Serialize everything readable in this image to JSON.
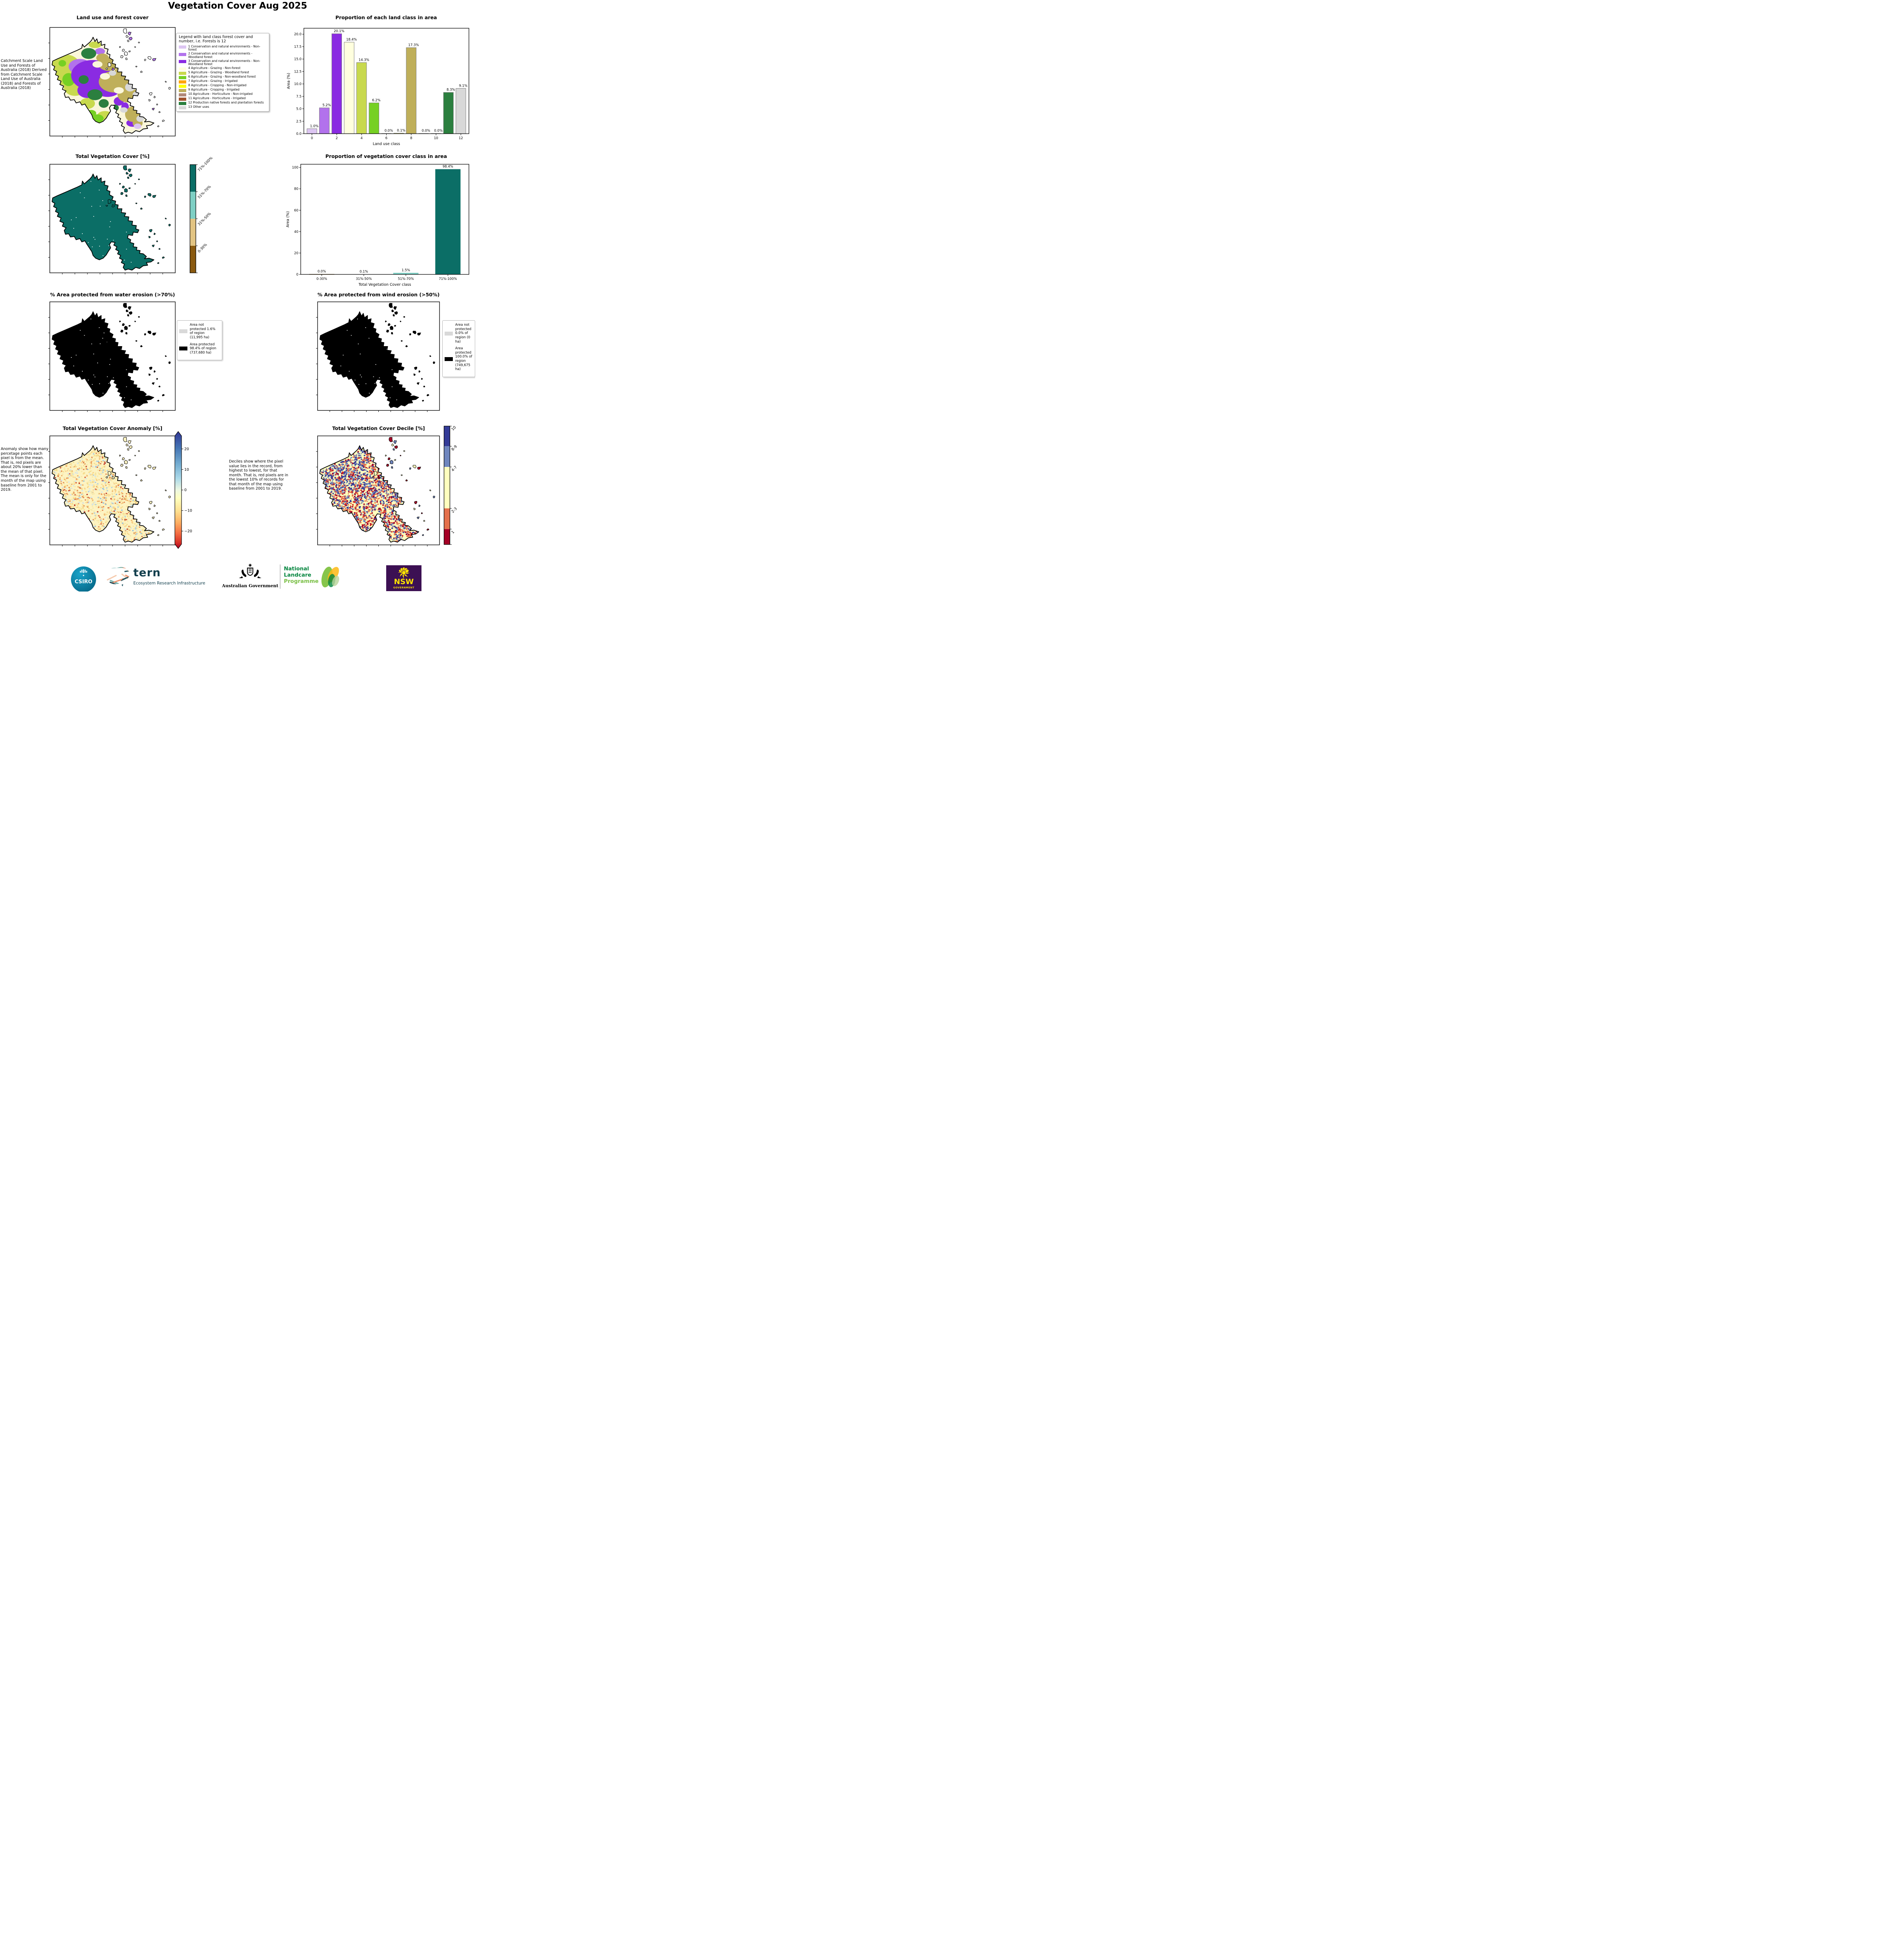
{
  "title": "Vegetation Cover Aug 2025",
  "land_use": {
    "title": "Land use and forest cover",
    "side_note": " Catchment Scale Land Use and Forests of Australia (2018) Derived from Catchment Scale Land Use of Australia (2018) and Forests of Australia (2018)",
    "legend_title": "Legend with land class forest cover and number, i.e. Forests is 12",
    "legend_items": [
      {
        "label": "1 Conservation and natural environments - Non-forest",
        "color": "#dcc5f2"
      },
      {
        "label": "2 Conservation and natural environments - Woodland forest",
        "color": "#b272ec"
      },
      {
        "label": "3 Conservation and natural environments - Non-Woodland forest",
        "color": "#8a2be2"
      },
      {
        "label": "4 Agriculture - Grazing - Non-forest",
        "color": "#ffffde"
      },
      {
        "label": "5 Agriculture - Grazing - Woodland forest",
        "color": "#c8d94e"
      },
      {
        "label": "6 Agriculture - Grazing - Non-woodland forest",
        "color": "#76d023"
      },
      {
        "label": "7 Agriculture - Grazing - Irrigated",
        "color": "#ffa500"
      },
      {
        "label": "8 Agriculture - Cropping - Non-irrigated",
        "color": "#ffff00"
      },
      {
        "label": "9 Agriculture - Cropping - Irrigated",
        "color": "#bfaf5a"
      },
      {
        "label": "10 Agriculture - Horticulture - Non-irrigated",
        "color": "#b08878"
      },
      {
        "label": "11 Agriculture - Horticulture - Irrigated",
        "color": "#a0522d"
      },
      {
        "label": "12 Production native forests and plantation forests",
        "color": "#2b7f3f"
      },
      {
        "label": "13 Other uses",
        "color": "#d8d8d8"
      }
    ]
  },
  "veg_cover": {
    "title": "Total Vegetation Cover [%]",
    "colorbar": [
      {
        "label": "71%-100%",
        "color": "#0b6e66"
      },
      {
        "label": "51%-70%",
        "color": "#7ecfc4"
      },
      {
        "label": "31%-50%",
        "color": "#e2c483"
      },
      {
        "label": "0-30%",
        "color": "#8a5a10"
      }
    ]
  },
  "water_erosion": {
    "title": "% Area protected from water erosion (>70%)",
    "legend": [
      {
        "color": "#d9d9d9",
        "label": "Area not protected 1.6% of region (11,995 ha)"
      },
      {
        "color": "#000000",
        "label": "Area protected 98.4% of region (737,680 ha)"
      }
    ]
  },
  "wind_erosion": {
    "title": "% Area protected from wind erosion (>50%)",
    "legend": [
      {
        "color": "#d9d9d9",
        "label": "Area not protected 0.0% of region (0 ha)"
      },
      {
        "color": "#000000",
        "label": "Area protected 100.0% of region (749,675 ha)"
      }
    ]
  },
  "anomaly": {
    "title": "Total Vegetation Cover Anomaly [%]",
    "note": "Anomaly show how many percetage points each pixel is from the mean. That is, red pixels are about 20% lower than the mean of that pixel. The mean is only for the month of the map using baseline from 2001 to 2019.",
    "colorbar_ticks": [
      "20",
      "10",
      "0",
      "−10",
      "−20"
    ]
  },
  "decile": {
    "title": "Total Vegetation Cover Decile [%]",
    "note": "Deciles show where the pixel value lies in the record, from highest to lowest, for that month. That is, red pixels are in the lowest 10% of records for that month of the map using baseline from 2001 to 2019.",
    "colorbar": [
      {
        "label": "10",
        "color": "#343b97",
        "h": 17
      },
      {
        "label": "8-9",
        "color": "#6f86be",
        "h": 17.5
      },
      {
        "label": "4-7",
        "color": "#ffffbe",
        "h": 35
      },
      {
        "label": "2-3",
        "color": "#e4704c",
        "h": 17.5
      },
      {
        "label": "1",
        "color": "#a50026",
        "h": 13
      }
    ]
  },
  "chart_data": [
    {
      "type": "bar",
      "title": "Proportion of each land class in area",
      "xlabel": "Land use class",
      "ylabel": "Area (%)",
      "x": [
        0,
        1,
        2,
        3,
        4,
        5,
        6,
        7,
        8,
        9,
        10,
        11,
        12
      ],
      "values": [
        1.0,
        5.2,
        20.1,
        18.4,
        14.3,
        6.2,
        0.0,
        0.1,
        17.3,
        0.0,
        0.0,
        8.3,
        9.1
      ],
      "labels": [
        "1.0%",
        "5.2%",
        "20.1%",
        "18.4%",
        "14.3%",
        "6.2%",
        "0.0%",
        "0.1%",
        "17.3%",
        "0.0%",
        "0.0%",
        "8.3%",
        "9.1%"
      ],
      "colors": [
        "#dcc5f2",
        "#b272ec",
        "#8a2be2",
        "#ffffde",
        "#c8d94e",
        "#76d023",
        "#ffa500",
        "#ffff00",
        "#bfaf5a",
        "#b08878",
        "#a0522d",
        "#2b7f3f",
        "#d8d8d8"
      ],
      "xticks": [
        "0",
        "2",
        "4",
        "6",
        "8",
        "10",
        "12"
      ],
      "yticks": [
        "0.0",
        "2.5",
        "5.0",
        "7.5",
        "10.0",
        "12.5",
        "15.0",
        "17.5",
        "20.0"
      ],
      "ylim": [
        0,
        21.2
      ],
      "grid": false,
      "legend_position": "none"
    },
    {
      "type": "bar",
      "title": "Proportion of vegetation cover class in area",
      "xlabel": "Total Vegetation Cover class",
      "ylabel": "Area (%)",
      "categories": [
        "0-30%",
        "31%-50%",
        "51%-70%",
        "71%-100%"
      ],
      "values": [
        0.0,
        0.1,
        1.5,
        98.4
      ],
      "labels": [
        "0.0%",
        "0.1%",
        "1.5%",
        "98.4%"
      ],
      "colors": [
        "#8a5a10",
        "#e2c483",
        "#7ecfc4",
        "#0b6e66"
      ],
      "yticks": [
        "0",
        "20",
        "40",
        "60",
        "80",
        "100"
      ],
      "ylim": [
        0,
        103
      ],
      "grid": false,
      "legend_position": "none"
    }
  ],
  "logos": {
    "csiro": "CSIRO",
    "tern": "tern",
    "tern_subtitle": "Ecosystem Research Infrastructure",
    "australian_government": "Australian Government",
    "landcare": [
      "National",
      "Landcare",
      "Programme"
    ],
    "nsw": "NSW",
    "nsw_sub": "GOVERNMENT"
  }
}
